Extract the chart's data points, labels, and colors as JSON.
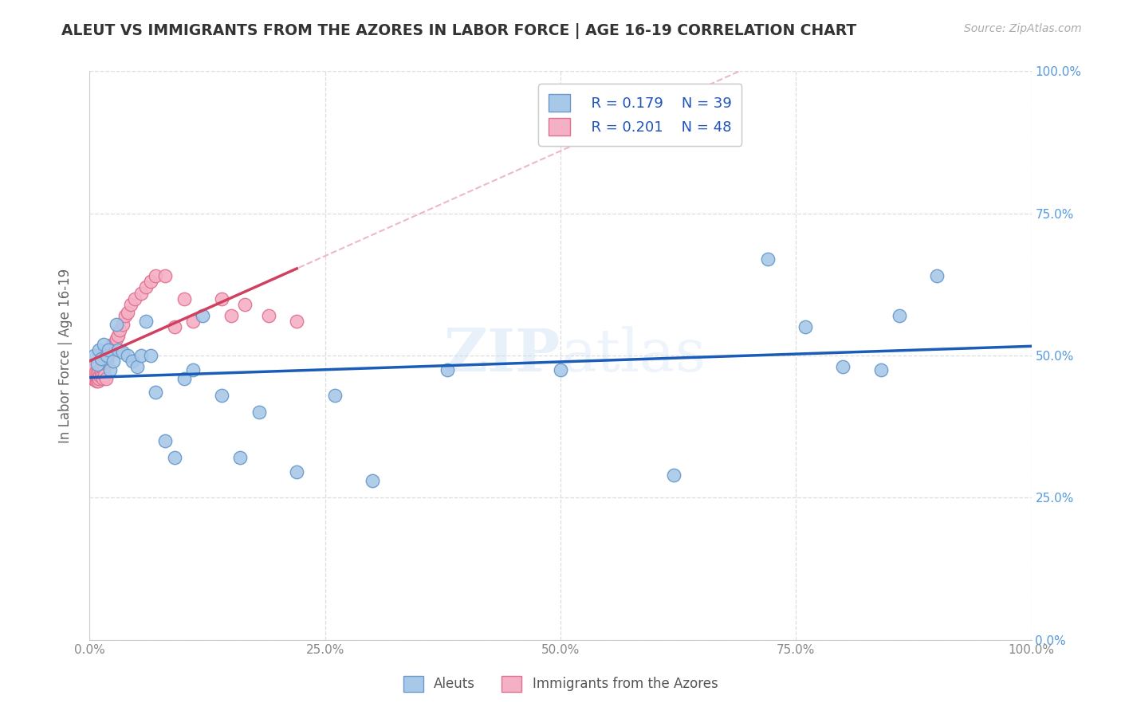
{
  "title": "ALEUT VS IMMIGRANTS FROM THE AZORES IN LABOR FORCE | AGE 16-19 CORRELATION CHART",
  "source": "Source: ZipAtlas.com",
  "ylabel": "In Labor Force | Age 16-19",
  "xmin": 0.0,
  "xmax": 1.0,
  "ymin": 0.0,
  "ymax": 1.0,
  "xticks": [
    0.0,
    0.25,
    0.5,
    0.75,
    1.0
  ],
  "yticks": [
    0.0,
    0.25,
    0.5,
    0.75,
    1.0
  ],
  "xtick_labels": [
    "0.0%",
    "25.0%",
    "50.0%",
    "75.0%",
    "100.0%"
  ],
  "ytick_labels": [
    "0.0%",
    "25.0%",
    "50.0%",
    "75.0%",
    "100.0%"
  ],
  "aleuts_color": "#a8c8e8",
  "azores_color": "#f4b0c4",
  "aleuts_edge": "#6699cc",
  "azores_edge": "#e07090",
  "blue_line_color": "#1a5cb8",
  "pink_line_color": "#d04060",
  "pink_dash_color": "#e8a0b5",
  "legend_R1": "R = 0.179",
  "legend_N1": "N = 39",
  "legend_R2": "R = 0.201",
  "legend_N2": "N = 48",
  "aleuts_x": [
    0.005,
    0.008,
    0.01,
    0.012,
    0.015,
    0.018,
    0.02,
    0.022,
    0.025,
    0.028,
    0.03,
    0.035,
    0.04,
    0.045,
    0.05,
    0.055,
    0.06,
    0.065,
    0.07,
    0.08,
    0.09,
    0.1,
    0.11,
    0.12,
    0.14,
    0.16,
    0.18,
    0.22,
    0.26,
    0.3,
    0.38,
    0.5,
    0.62,
    0.72,
    0.76,
    0.8,
    0.84,
    0.86,
    0.9
  ],
  "aleuts_y": [
    0.5,
    0.485,
    0.51,
    0.495,
    0.52,
    0.5,
    0.51,
    0.475,
    0.49,
    0.555,
    0.51,
    0.505,
    0.5,
    0.49,
    0.48,
    0.5,
    0.56,
    0.5,
    0.435,
    0.35,
    0.32,
    0.46,
    0.475,
    0.57,
    0.43,
    0.32,
    0.4,
    0.295,
    0.43,
    0.28,
    0.475,
    0.475,
    0.29,
    0.67,
    0.55,
    0.48,
    0.475,
    0.57,
    0.64
  ],
  "azores_x": [
    0.002,
    0.003,
    0.004,
    0.004,
    0.005,
    0.006,
    0.007,
    0.008,
    0.008,
    0.009,
    0.01,
    0.01,
    0.011,
    0.012,
    0.012,
    0.013,
    0.014,
    0.015,
    0.016,
    0.017,
    0.018,
    0.019,
    0.02,
    0.021,
    0.022,
    0.024,
    0.026,
    0.028,
    0.03,
    0.032,
    0.035,
    0.038,
    0.04,
    0.044,
    0.048,
    0.055,
    0.06,
    0.065,
    0.07,
    0.08,
    0.09,
    0.1,
    0.11,
    0.14,
    0.15,
    0.165,
    0.19,
    0.22
  ],
  "azores_y": [
    0.475,
    0.46,
    0.465,
    0.48,
    0.46,
    0.47,
    0.455,
    0.46,
    0.47,
    0.455,
    0.46,
    0.47,
    0.465,
    0.47,
    0.48,
    0.465,
    0.46,
    0.475,
    0.465,
    0.46,
    0.49,
    0.5,
    0.51,
    0.505,
    0.51,
    0.52,
    0.52,
    0.53,
    0.535,
    0.545,
    0.555,
    0.57,
    0.575,
    0.59,
    0.6,
    0.61,
    0.62,
    0.63,
    0.64,
    0.64,
    0.55,
    0.6,
    0.56,
    0.6,
    0.57,
    0.59,
    0.57,
    0.56
  ],
  "bg_color": "#ffffff",
  "grid_color": "#dddddd"
}
